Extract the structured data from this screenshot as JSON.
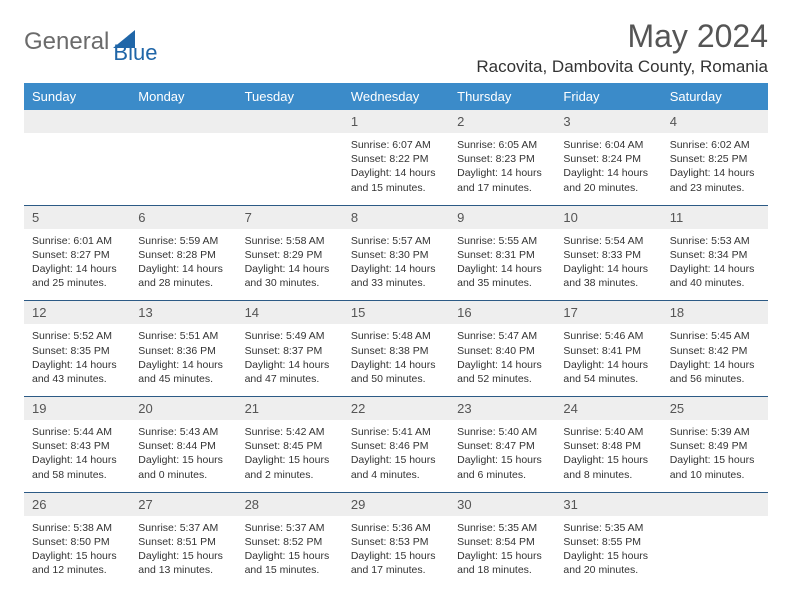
{
  "brand": {
    "part1": "General",
    "part2": "Blue"
  },
  "colors": {
    "header_bg": "#3b8bc9",
    "header_text": "#ffffff",
    "daynum_bg": "#eeeeee",
    "sep": "#2c5a85",
    "logo_gray": "#6b6b6b",
    "logo_blue": "#2066a8"
  },
  "title": "May 2024",
  "location": "Racovita, Dambovita County, Romania",
  "weekdays": [
    "Sunday",
    "Monday",
    "Tuesday",
    "Wednesday",
    "Thursday",
    "Friday",
    "Saturday"
  ],
  "weeks": [
    {
      "nums": [
        "",
        "",
        "",
        "1",
        "2",
        "3",
        "4"
      ],
      "cells": [
        {},
        {},
        {},
        {
          "sunrise": "Sunrise: 6:07 AM",
          "sunset": "Sunset: 8:22 PM",
          "daylight": "Daylight: 14 hours and 15 minutes."
        },
        {
          "sunrise": "Sunrise: 6:05 AM",
          "sunset": "Sunset: 8:23 PM",
          "daylight": "Daylight: 14 hours and 17 minutes."
        },
        {
          "sunrise": "Sunrise: 6:04 AM",
          "sunset": "Sunset: 8:24 PM",
          "daylight": "Daylight: 14 hours and 20 minutes."
        },
        {
          "sunrise": "Sunrise: 6:02 AM",
          "sunset": "Sunset: 8:25 PM",
          "daylight": "Daylight: 14 hours and 23 minutes."
        }
      ]
    },
    {
      "nums": [
        "5",
        "6",
        "7",
        "8",
        "9",
        "10",
        "11"
      ],
      "cells": [
        {
          "sunrise": "Sunrise: 6:01 AM",
          "sunset": "Sunset: 8:27 PM",
          "daylight": "Daylight: 14 hours and 25 minutes."
        },
        {
          "sunrise": "Sunrise: 5:59 AM",
          "sunset": "Sunset: 8:28 PM",
          "daylight": "Daylight: 14 hours and 28 minutes."
        },
        {
          "sunrise": "Sunrise: 5:58 AM",
          "sunset": "Sunset: 8:29 PM",
          "daylight": "Daylight: 14 hours and 30 minutes."
        },
        {
          "sunrise": "Sunrise: 5:57 AM",
          "sunset": "Sunset: 8:30 PM",
          "daylight": "Daylight: 14 hours and 33 minutes."
        },
        {
          "sunrise": "Sunrise: 5:55 AM",
          "sunset": "Sunset: 8:31 PM",
          "daylight": "Daylight: 14 hours and 35 minutes."
        },
        {
          "sunrise": "Sunrise: 5:54 AM",
          "sunset": "Sunset: 8:33 PM",
          "daylight": "Daylight: 14 hours and 38 minutes."
        },
        {
          "sunrise": "Sunrise: 5:53 AM",
          "sunset": "Sunset: 8:34 PM",
          "daylight": "Daylight: 14 hours and 40 minutes."
        }
      ]
    },
    {
      "nums": [
        "12",
        "13",
        "14",
        "15",
        "16",
        "17",
        "18"
      ],
      "cells": [
        {
          "sunrise": "Sunrise: 5:52 AM",
          "sunset": "Sunset: 8:35 PM",
          "daylight": "Daylight: 14 hours and 43 minutes."
        },
        {
          "sunrise": "Sunrise: 5:51 AM",
          "sunset": "Sunset: 8:36 PM",
          "daylight": "Daylight: 14 hours and 45 minutes."
        },
        {
          "sunrise": "Sunrise: 5:49 AM",
          "sunset": "Sunset: 8:37 PM",
          "daylight": "Daylight: 14 hours and 47 minutes."
        },
        {
          "sunrise": "Sunrise: 5:48 AM",
          "sunset": "Sunset: 8:38 PM",
          "daylight": "Daylight: 14 hours and 50 minutes."
        },
        {
          "sunrise": "Sunrise: 5:47 AM",
          "sunset": "Sunset: 8:40 PM",
          "daylight": "Daylight: 14 hours and 52 minutes."
        },
        {
          "sunrise": "Sunrise: 5:46 AM",
          "sunset": "Sunset: 8:41 PM",
          "daylight": "Daylight: 14 hours and 54 minutes."
        },
        {
          "sunrise": "Sunrise: 5:45 AM",
          "sunset": "Sunset: 8:42 PM",
          "daylight": "Daylight: 14 hours and 56 minutes."
        }
      ]
    },
    {
      "nums": [
        "19",
        "20",
        "21",
        "22",
        "23",
        "24",
        "25"
      ],
      "cells": [
        {
          "sunrise": "Sunrise: 5:44 AM",
          "sunset": "Sunset: 8:43 PM",
          "daylight": "Daylight: 14 hours and 58 minutes."
        },
        {
          "sunrise": "Sunrise: 5:43 AM",
          "sunset": "Sunset: 8:44 PM",
          "daylight": "Daylight: 15 hours and 0 minutes."
        },
        {
          "sunrise": "Sunrise: 5:42 AM",
          "sunset": "Sunset: 8:45 PM",
          "daylight": "Daylight: 15 hours and 2 minutes."
        },
        {
          "sunrise": "Sunrise: 5:41 AM",
          "sunset": "Sunset: 8:46 PM",
          "daylight": "Daylight: 15 hours and 4 minutes."
        },
        {
          "sunrise": "Sunrise: 5:40 AM",
          "sunset": "Sunset: 8:47 PM",
          "daylight": "Daylight: 15 hours and 6 minutes."
        },
        {
          "sunrise": "Sunrise: 5:40 AM",
          "sunset": "Sunset: 8:48 PM",
          "daylight": "Daylight: 15 hours and 8 minutes."
        },
        {
          "sunrise": "Sunrise: 5:39 AM",
          "sunset": "Sunset: 8:49 PM",
          "daylight": "Daylight: 15 hours and 10 minutes."
        }
      ]
    },
    {
      "nums": [
        "26",
        "27",
        "28",
        "29",
        "30",
        "31",
        ""
      ],
      "cells": [
        {
          "sunrise": "Sunrise: 5:38 AM",
          "sunset": "Sunset: 8:50 PM",
          "daylight": "Daylight: 15 hours and 12 minutes."
        },
        {
          "sunrise": "Sunrise: 5:37 AM",
          "sunset": "Sunset: 8:51 PM",
          "daylight": "Daylight: 15 hours and 13 minutes."
        },
        {
          "sunrise": "Sunrise: 5:37 AM",
          "sunset": "Sunset: 8:52 PM",
          "daylight": "Daylight: 15 hours and 15 minutes."
        },
        {
          "sunrise": "Sunrise: 5:36 AM",
          "sunset": "Sunset: 8:53 PM",
          "daylight": "Daylight: 15 hours and 17 minutes."
        },
        {
          "sunrise": "Sunrise: 5:35 AM",
          "sunset": "Sunset: 8:54 PM",
          "daylight": "Daylight: 15 hours and 18 minutes."
        },
        {
          "sunrise": "Sunrise: 5:35 AM",
          "sunset": "Sunset: 8:55 PM",
          "daylight": "Daylight: 15 hours and 20 minutes."
        },
        {}
      ]
    }
  ]
}
